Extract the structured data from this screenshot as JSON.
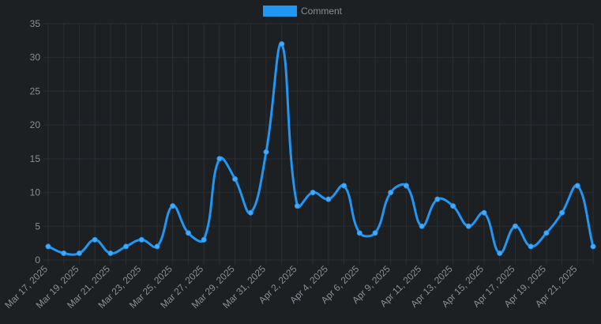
{
  "chart_data": {
    "type": "line",
    "categories": [
      "Mar 17, 2025",
      null,
      "Mar 19, 2025",
      null,
      "Mar 21, 2025",
      null,
      "Mar 23, 2025",
      null,
      "Mar 25, 2025",
      null,
      "Mar 27, 2025",
      null,
      "Mar 29, 2025",
      null,
      "Mar 31, 2025",
      null,
      "Apr 2, 2025",
      null,
      "Apr 4, 2025",
      null,
      "Apr 6, 2025",
      null,
      "Apr 9, 2025",
      null,
      "Apr 11, 2025",
      null,
      "Apr 13, 2025",
      null,
      "Apr 15, 2025",
      null,
      "Apr 17, 2025",
      null,
      "Apr 19, 2025",
      null,
      "Apr 21, 2025",
      null
    ],
    "series": [
      {
        "name": "Comment",
        "color": "#2196f3",
        "values": [
          2,
          1,
          1,
          3,
          1,
          2,
          3,
          2,
          8,
          4,
          3,
          15,
          12,
          7,
          16,
          32,
          8,
          10,
          9,
          11,
          4,
          4,
          10,
          11,
          5,
          9,
          8,
          5,
          7,
          1,
          5,
          2,
          4,
          7,
          11,
          2
        ]
      }
    ],
    "ylim": [
      0,
      35
    ],
    "yticks": [
      0,
      5,
      10,
      15,
      20,
      25,
      30,
      35
    ],
    "grid": true,
    "legend": "top"
  }
}
